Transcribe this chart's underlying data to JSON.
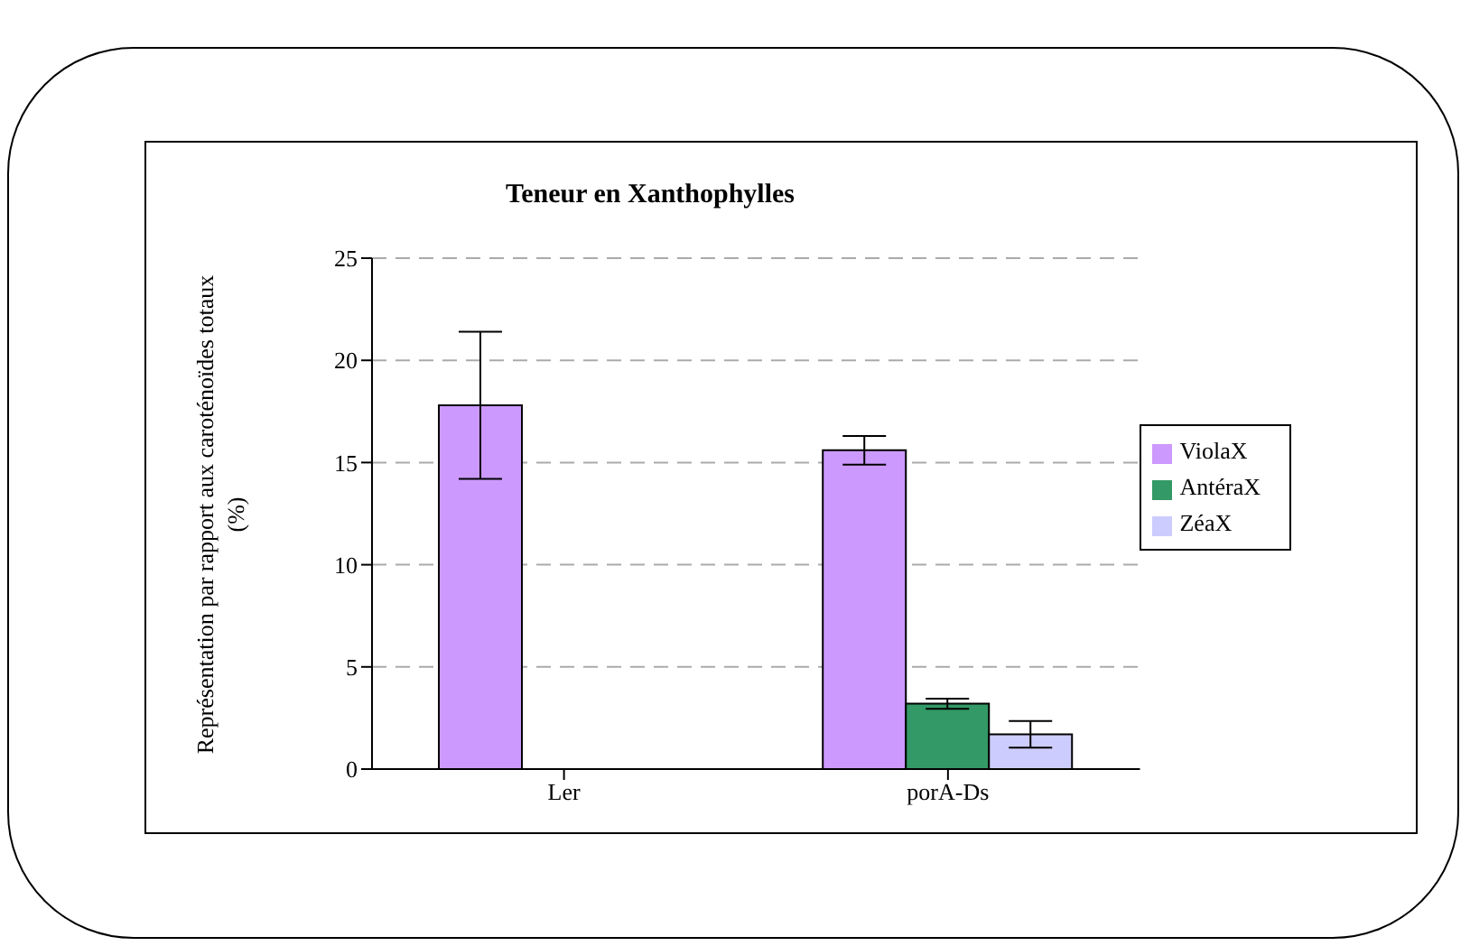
{
  "chart_data": {
    "type": "bar",
    "title": "Teneur en Xanthophylles",
    "ylabel": "Représentation par rapport aux caroténoïdes totaux (%)",
    "categories": [
      "Ler",
      "porA-Ds"
    ],
    "series": [
      {
        "name": "ViolaX",
        "color": "#cc99ff",
        "values": [
          17.8,
          15.6
        ],
        "errors": [
          3.6,
          0.7
        ]
      },
      {
        "name": "AntéraX",
        "color": "#339966",
        "values": [
          0,
          3.2
        ],
        "errors": [
          null,
          0.25
        ]
      },
      {
        "name": "ZéaX",
        "color": "#ccccff",
        "values": [
          0,
          1.7
        ],
        "errors": [
          null,
          0.65
        ]
      }
    ],
    "ylim": [
      0,
      25
    ],
    "yticks": [
      0,
      5,
      10,
      15,
      20,
      25
    ],
    "grid": "y",
    "legend": "right"
  }
}
